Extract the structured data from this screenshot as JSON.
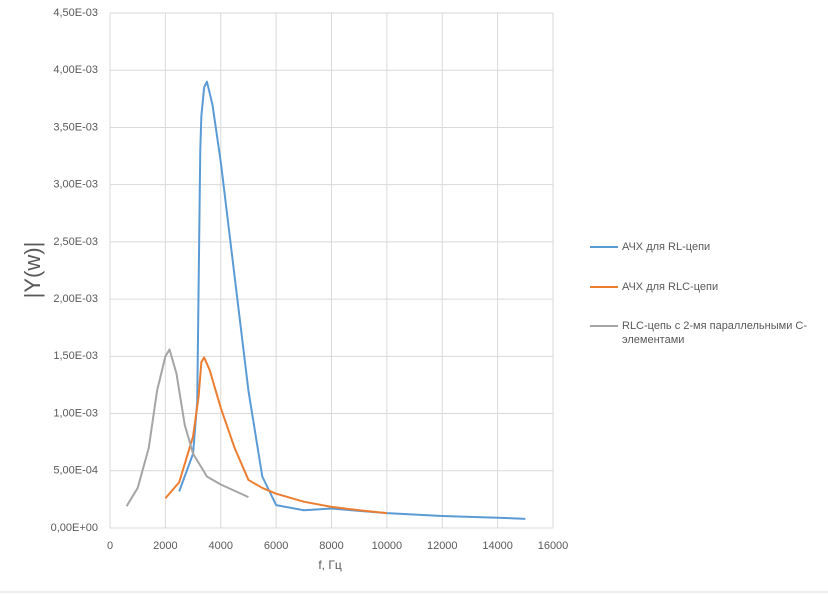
{
  "chart_data": {
    "type": "line",
    "x_label": "f, Гц",
    "y_label": "|Y(w)|",
    "xlim": [
      0,
      16000
    ],
    "xticks": [
      0,
      2000,
      4000,
      6000,
      8000,
      10000,
      12000,
      14000,
      16000
    ],
    "ylim": [
      0,
      0.0045
    ],
    "yticks": [
      {
        "value": 0,
        "label": "0,00E+00"
      },
      {
        "value": 0.0005,
        "label": "5,00E-04"
      },
      {
        "value": 0.001,
        "label": "1,00E-03"
      },
      {
        "value": 0.0015,
        "label": "1,50E-03"
      },
      {
        "value": 0.002,
        "label": "2,00E-03"
      },
      {
        "value": 0.0025,
        "label": "2,50E-03"
      },
      {
        "value": 0.003,
        "label": "3,00E-03"
      },
      {
        "value": 0.0035,
        "label": "3,50E-03"
      },
      {
        "value": 0.004,
        "label": "4,00E-03"
      },
      {
        "value": 0.0045,
        "label": "4,50E-03"
      }
    ],
    "grid": true,
    "legend": "right",
    "series": [
      {
        "name": "АЧХ для RL-цепи",
        "color": "#5b9bd5",
        "x": [
          2500,
          3000,
          3150,
          3220,
          3260,
          3300,
          3400,
          3500,
          3700,
          4000,
          4500,
          5000,
          5500,
          6000,
          7000,
          8000,
          9000,
          10000,
          12000,
          14000,
          15000
        ],
        "values": [
          0.00032,
          0.00065,
          0.0011,
          0.0025,
          0.0033,
          0.0036,
          0.00385,
          0.0039,
          0.0037,
          0.0032,
          0.0022,
          0.0012,
          0.00045,
          0.0002,
          0.000155,
          0.00017,
          0.00015,
          0.00013,
          0.000105,
          9e-05,
          8e-05
        ]
      },
      {
        "name": "АЧХ для RLC-цепи",
        "color": "#ed7d31",
        "x": [
          2000,
          2500,
          3000,
          3200,
          3300,
          3400,
          3600,
          4000,
          4500,
          5000,
          5500,
          6000,
          7000,
          8000,
          9000,
          10000
        ],
        "values": [
          0.00026,
          0.0004,
          0.0008,
          0.00115,
          0.00145,
          0.00149,
          0.00138,
          0.00105,
          0.0007,
          0.00042,
          0.00035,
          0.0003,
          0.00023,
          0.000185,
          0.000155,
          0.00013
        ]
      },
      {
        "name": "RLC-цепь с 2-мя параллельными C-элементами",
        "color": "#a5a5a5",
        "x": [
          600,
          1000,
          1400,
          1700,
          2000,
          2150,
          2400,
          2700,
          3000,
          3500,
          4000,
          5000
        ],
        "values": [
          0.00019,
          0.00035,
          0.0007,
          0.0012,
          0.0015,
          0.00156,
          0.00135,
          0.0009,
          0.00065,
          0.00045,
          0.00038,
          0.00027
        ]
      }
    ]
  }
}
